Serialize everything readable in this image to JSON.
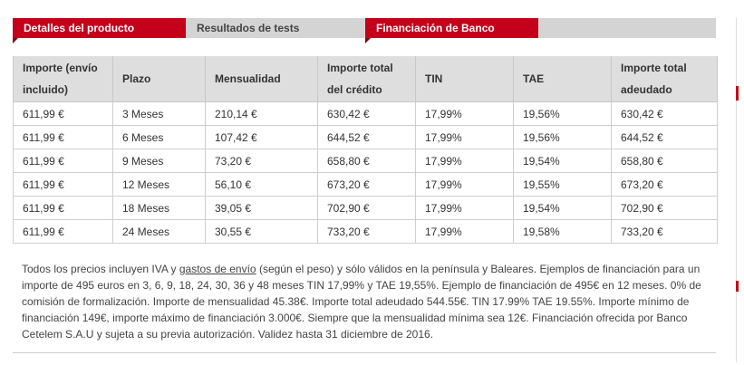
{
  "tabs": [
    "Detalles del producto",
    "Resultados de tests",
    "Financiación de Banco Cetelem"
  ],
  "table": {
    "headers": [
      "Importe (envío incluido)",
      "Plazo",
      "Mensualidad",
      "Importe total del crédito",
      "TIN",
      "TAE",
      "Importe total adeudado"
    ],
    "rows": [
      [
        "611,99 €",
        "3 Meses",
        "210,14 €",
        "630,42 €",
        "17,99%",
        "19,56%",
        "630,42 €"
      ],
      [
        "611,99 €",
        "6 Meses",
        "107,42 €",
        "644,52 €",
        "17,99%",
        "19,56%",
        "644,52 €"
      ],
      [
        "611,99 €",
        "9 Meses",
        "73,20 €",
        "658,80 €",
        "17,99%",
        "19,54%",
        "658,80 €"
      ],
      [
        "611,99 €",
        "12 Meses",
        "56,10 €",
        "673,20 €",
        "17,99%",
        "19,55%",
        "673,20 €"
      ],
      [
        "611,99 €",
        "18 Meses",
        "39,05 €",
        "702,90 €",
        "17,99%",
        "19,54%",
        "702,90 €"
      ],
      [
        "611,99 €",
        "24 Meses",
        "30,55 €",
        "733,20 €",
        "17,99%",
        "19,58%",
        "733,20 €"
      ]
    ]
  },
  "note": {
    "before": "Todos los precios incluyen IVA y ",
    "link": "gastos de envío",
    "after": " (según el peso) y sólo válidos en la península y Baleares. Ejemplos de financiación para un importe de 495 euros en 3, 6, 9, 18, 24, 30, 36 y 48 meses TIN 17,99% y TAE 19,55%. Ejemplo de financiación de 495€ en 12 meses. 0% de comisión de formalización. Importe de mensualidad 45.38€. Importe total adeudado 544.55€. TIN 17.99% TAE 19.55%. Importe mínimo de financiación 149€, importe máximo de financiación 3.000€. Siempre que la mensualidad mínima sea 12€. Financiación ofrecida por Banco Cetelem S.A.U y sujeta a su previa autorización. Validez hasta 31 diciembre de 2016."
  }
}
